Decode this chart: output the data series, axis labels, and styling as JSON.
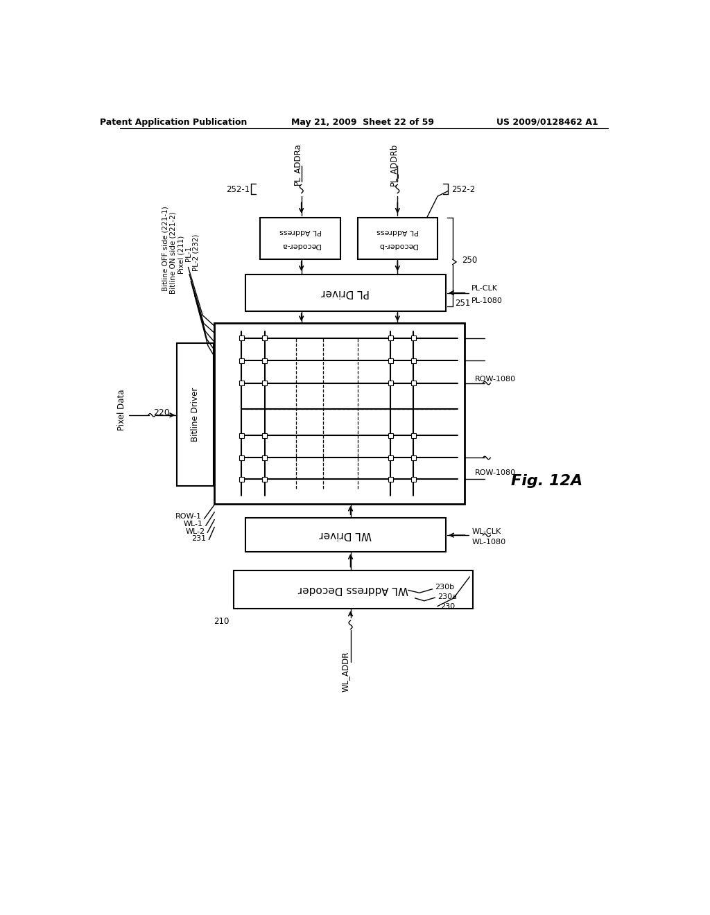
{
  "bg_color": "#ffffff",
  "header_left": "Patent Application Publication",
  "header_mid": "May 21, 2009  Sheet 22 of 59",
  "header_right": "US 2009/0128462 A1",
  "fig_label": "Fig. 12A"
}
